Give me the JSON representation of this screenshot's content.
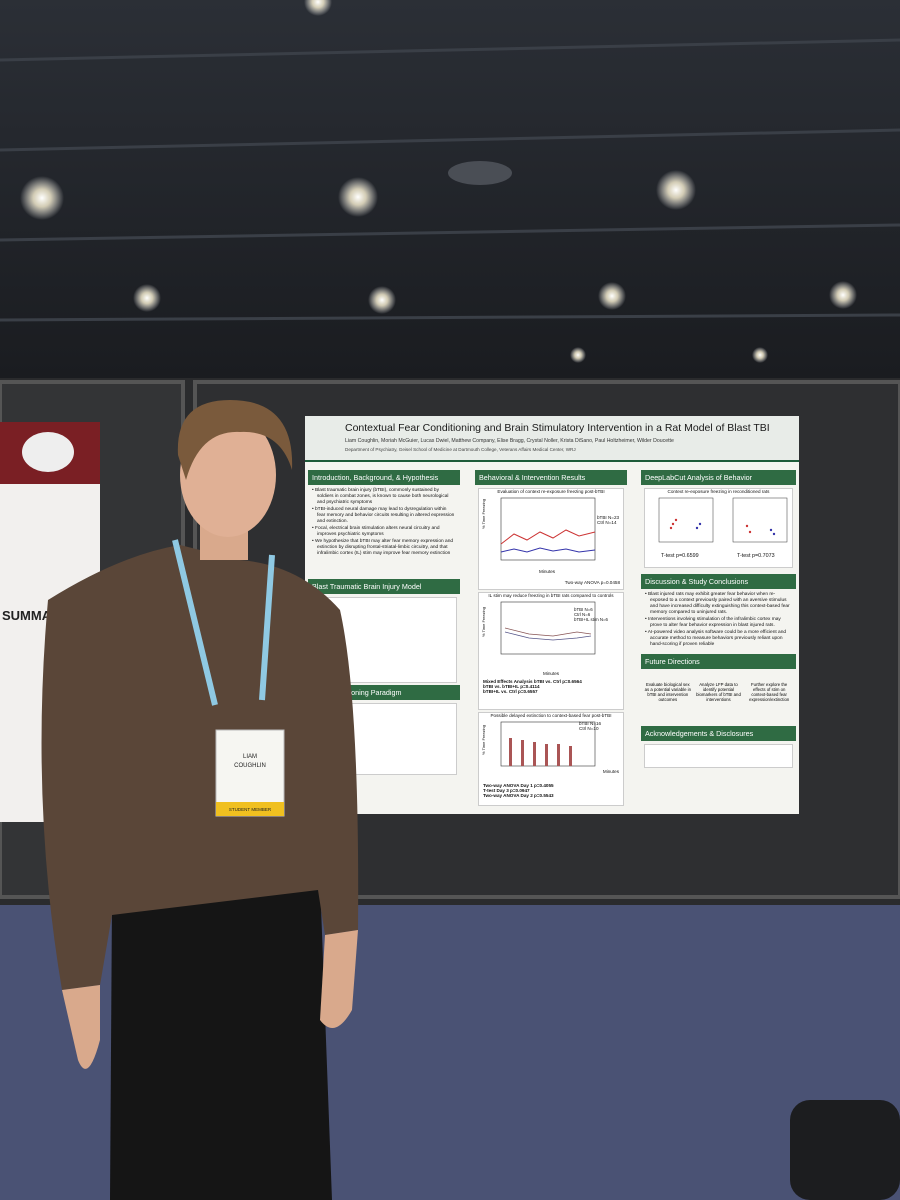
{
  "poster": {
    "title": "Contextual Fear Conditioning and Brain Stimulatory Intervention in a Rat Model of Blast TBI",
    "authors": "Liam Coughlin, Moriah McGuier, Lucas Dwiel, Matthew Company, Elise Bragg, Crystal Noller, Krista DiSano, Paul Holtzheimer, Wilder Doucette",
    "affiliation": "Department of Psychiatry, Geisel School of Medicine at Dartmouth College, Veterans Affairs Medical Center, WRJ",
    "intro": {
      "heading": "Introduction, Background, & Hypothesis",
      "items": [
        "Blast traumatic brain injury (bTBI), commonly sustained by soldiers in combat zones, is known to cause both neurological and psychiatric symptoms",
        "bTBI-induced neural damage may lead to dysregulation within fear memory and behavior circuits resulting in altered expression and extinction.",
        "Focal, electrical brain stimulation alters neural circuitry and improves psychiatric symptoms",
        "We hypothesize that bTBI may alter fear memory expression and extinction by disrupting frontal-striatal-limbic circuitry, and that infralimbic cortex (IL) stim may improve fear memory extinction"
      ]
    },
    "blast": {
      "heading": "Blast Traumatic Brain Injury Model"
    },
    "fear": {
      "heading": "Fear Conditioning Paradigm"
    },
    "results": {
      "heading": "Behavioral & Intervention Results",
      "chart1": {
        "title": "Evaluation of context re-exposure freezing post-bTBI",
        "legend": [
          "bTBI N=23",
          "Ctrl N=14"
        ],
        "xlabel": "Minutes",
        "ylabel": "% Time Freezing",
        "stat": "Two-way ANOVA p=0.0458"
      },
      "chart2": {
        "title": "IL stim may reduce freezing in bTBI rats compared to controls",
        "legend": [
          "bTBI N=6",
          "Ctrl N=6",
          "bTBI+IL stim N=6"
        ],
        "xlabel": "Minutes",
        "ylabel": "% Time Freezing",
        "stats": [
          "Mixed Effects Analysis bTBI vs. Ctrl p=0.6564",
          "bTBI vs. bTBI+IL p=0.4114",
          "bTBI+IL vs. Ctrl p=0.6557"
        ]
      },
      "chart3": {
        "title": "Possible delayed extinction to context-based fear post-bTBI",
        "legend": [
          "bTBI N=16",
          "Ctrl N=10"
        ],
        "xlabel": "Minutes",
        "ylabel": "% Time Freezing",
        "stats": [
          "Two-way ANOVA Day 1 p=0.4055",
          "T-test Day 3 p=0.0947",
          "Two-way ANOVA Day 2 p=0.5543"
        ]
      }
    },
    "dlc": {
      "heading": "DeepLabCut Analysis of Behavior",
      "title": "Context re-exposure freezing in reconditioned rats",
      "stats": [
        "T-test p=0.6599",
        "T-test p=0.7073"
      ]
    },
    "discussion": {
      "heading": "Discussion & Study Conclusions",
      "items": [
        "Blast injured rats may exhibit greater fear behavior when re-exposed to a context previously paired with an aversive stimulus and have increased difficulty extinguishing this context-based fear memory compared to uninjured rats.",
        "Interventions involving stimulation of the infralimbic cortex may prove to alter fear behavior expression in blast injured rats.",
        "AI-powered video analysis software could be a more efficient and accurate method to measure behaviors previously reliant upon hand-scoring if proven reliable"
      ]
    },
    "future": {
      "heading": "Future Directions",
      "items": [
        "Evaluate biological sex as a potential variable in bTBI and intervention outcomes",
        "Analyze LFP data to identify potential biomarkers of bTBI and interventions",
        "Further explore the effects of stim on context-based fear expression/extinction"
      ]
    },
    "ack": {
      "heading": "Acknowledgements & Disclosures"
    }
  },
  "badge": {
    "first": "LIAM",
    "last": "COUGHLIN",
    "role": "STUDENT MEMBER"
  },
  "left_poster": {
    "heading": "SUMMARY"
  }
}
